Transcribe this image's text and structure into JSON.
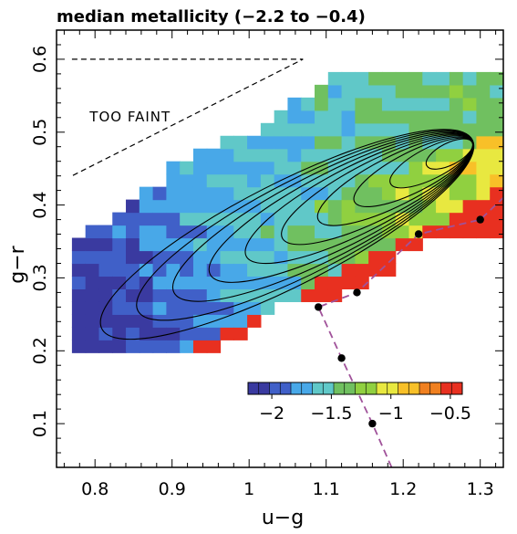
{
  "chart_data": {
    "type": "heatmap",
    "title": "median metallicity (−2.2 to −0.4)",
    "xlabel": "u−g",
    "ylabel": "g−r",
    "xlim": [
      0.75,
      1.33
    ],
    "ylim": [
      0.04,
      0.64
    ],
    "x_ticks": [
      {
        "value": 0.8,
        "label": "0.8"
      },
      {
        "value": 0.9,
        "label": "0.9"
      },
      {
        "value": 1.0,
        "label": "1"
      },
      {
        "value": 1.1,
        "label": "1.1"
      },
      {
        "value": 1.2,
        "label": "1.2"
      },
      {
        "value": 1.3,
        "label": "1.3"
      }
    ],
    "y_ticks": [
      {
        "value": 0.1,
        "label": "0.1"
      },
      {
        "value": 0.2,
        "label": "0.2"
      },
      {
        "value": 0.3,
        "label": "0.3"
      },
      {
        "value": 0.4,
        "label": "0.4"
      },
      {
        "value": 0.5,
        "label": "0.5"
      },
      {
        "value": 0.6,
        "label": "0.6"
      }
    ],
    "grid": false,
    "colorbar": {
      "range": [
        -2.2,
        -0.4
      ],
      "ticks": [
        {
          "value": -2.0,
          "label": "−2"
        },
        {
          "value": -1.5,
          "label": "−1.5"
        },
        {
          "value": -1.0,
          "label": "−1"
        },
        {
          "value": -0.5,
          "label": "−0.5"
        }
      ],
      "colors": [
        "#3a3aa0",
        "#4060c8",
        "#48a8e8",
        "#60c8c8",
        "#70c060",
        "#90d040",
        "#e8e840",
        "#f8c028",
        "#f08020",
        "#e83020"
      ]
    },
    "annotation": {
      "label": "TOO FAINT",
      "region": [
        [
          0.77,
          0.6
        ],
        [
          1.07,
          0.6
        ],
        [
          0.77,
          0.44
        ]
      ]
    },
    "boundary_points": [
      {
        "x": 1.16,
        "y": 0.1
      },
      {
        "x": 1.12,
        "y": 0.19
      },
      {
        "x": 1.09,
        "y": 0.26
      },
      {
        "x": 1.14,
        "y": 0.28
      },
      {
        "x": 1.22,
        "y": 0.36
      },
      {
        "x": 1.3,
        "y": 0.38
      }
    ],
    "boundary_line_color": "#a0529a",
    "contour_peak": {
      "x": 1.26,
      "y": 0.47
    },
    "contour_levels": 10
  }
}
